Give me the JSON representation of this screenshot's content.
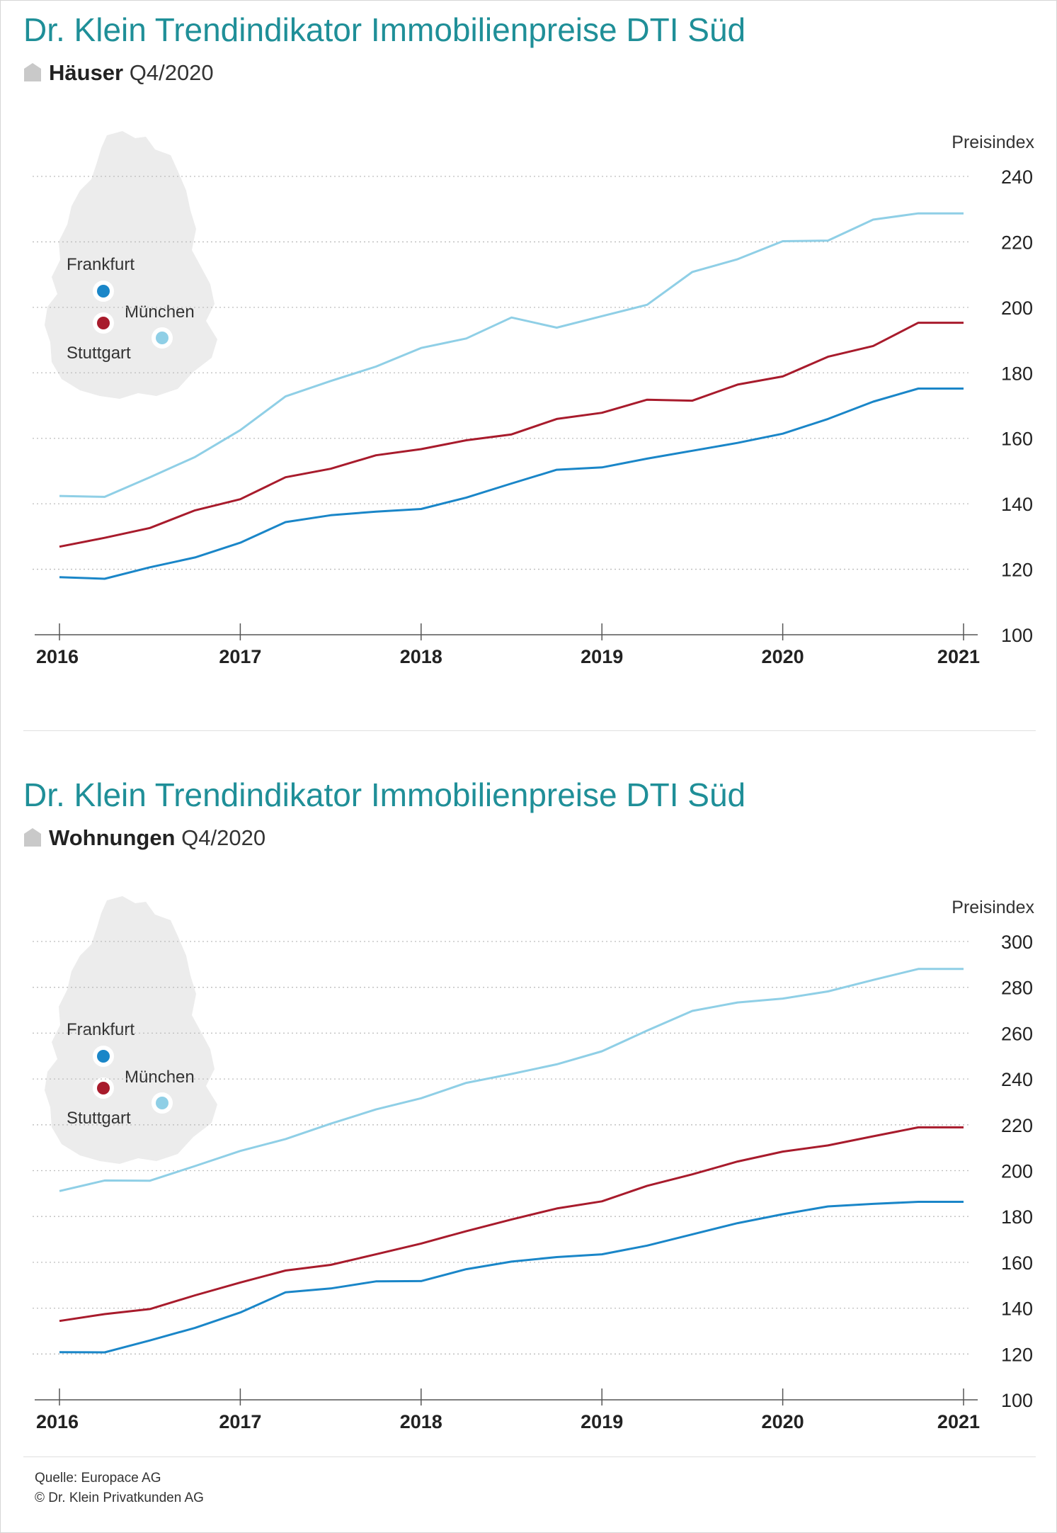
{
  "charts": [
    {
      "title": "Dr. Klein Trendindikator Immobilienpreise DTI Süd",
      "subtitle_bold": "Häuser",
      "subtitle_rest": "Q4/2020",
      "map_labels": [
        "Frankfurt",
        "München",
        "Stuttgart"
      ],
      "chart_data": {
        "type": "line",
        "ylabel": "Preisindex",
        "ylim": [
          100,
          240
        ],
        "yticks": [
          100,
          120,
          140,
          160,
          180,
          200,
          220,
          240
        ],
        "xlim": [
          2016,
          2021
        ],
        "xticks": [
          2016,
          2017,
          2018,
          2019,
          2020,
          2021
        ],
        "grid": "horizontal-dotted",
        "x": [
          2016.0,
          2016.25,
          2016.5,
          2016.75,
          2017.0,
          2017.25,
          2017.5,
          2017.75,
          2018.0,
          2018.25,
          2018.5,
          2018.75,
          2019.0,
          2019.25,
          2019.5,
          2019.75,
          2020.0,
          2020.25,
          2020.5,
          2020.75,
          2021.0
        ],
        "series": [
          {
            "name": "Frankfurt",
            "color": "#1a86c8",
            "values": [
              117.6,
              117.1,
              120.6,
              123.6,
              128.1,
              134.4,
              136.5,
              137.6,
              138.4,
              141.9,
              146.2,
              150.4,
              151.1,
              153.8,
              156.2,
              158.6,
              161.4,
              165.9,
              171.2,
              175.2,
              175.2
            ]
          },
          {
            "name": "München",
            "color": "#a81b2c",
            "values": [
              126.9,
              129.6,
              132.6,
              138.0,
              141.4,
              148.1,
              150.7,
              154.8,
              156.7,
              159.4,
              161.2,
              165.9,
              167.8,
              171.8,
              171.5,
              176.4,
              178.9,
              184.9,
              188.2,
              195.3,
              195.3
            ]
          },
          {
            "name": "Stuttgart",
            "color": "#8fcfe6",
            "values": [
              142.4,
              142.1,
              148.1,
              154.3,
              162.5,
              172.8,
              177.5,
              181.9,
              187.6,
              190.5,
              196.9,
              193.8,
              197.3,
              200.8,
              210.8,
              214.7,
              220.2,
              220.4,
              226.8,
              228.7,
              228.7
            ]
          }
        ]
      }
    },
    {
      "title": "Dr. Klein Trendindikator Immobilienpreise DTI Süd",
      "subtitle_bold": "Wohnungen",
      "subtitle_rest": "Q4/2020",
      "map_labels": [
        "Frankfurt",
        "München",
        "Stuttgart"
      ],
      "chart_data": {
        "type": "line",
        "ylabel": "Preisindex",
        "ylim": [
          100,
          300
        ],
        "yticks": [
          100,
          120,
          140,
          160,
          180,
          200,
          220,
          240,
          260,
          280,
          300
        ],
        "xlim": [
          2016,
          2021
        ],
        "xticks": [
          2016,
          2017,
          2018,
          2019,
          2020,
          2021
        ],
        "grid": "horizontal-dotted",
        "x": [
          2016.0,
          2016.25,
          2016.5,
          2016.75,
          2017.0,
          2017.25,
          2017.5,
          2017.75,
          2018.0,
          2018.25,
          2018.5,
          2018.75,
          2019.0,
          2019.25,
          2019.5,
          2019.75,
          2020.0,
          2020.25,
          2020.5,
          2020.75,
          2021.0
        ],
        "series": [
          {
            "name": "Frankfurt",
            "color": "#1a86c8",
            "values": [
              120.8,
              120.7,
              125.9,
              131.4,
              138.1,
              146.9,
              148.6,
              151.7,
              151.8,
              157.0,
              160.3,
              162.3,
              163.5,
              167.3,
              172.2,
              177.1,
              181.0,
              184.4,
              185.5,
              186.4,
              186.4
            ]
          },
          {
            "name": "München",
            "color": "#a81b2c",
            "values": [
              134.4,
              137.4,
              139.6,
              145.6,
              151.2,
              156.4,
              158.9,
              163.5,
              168.2,
              173.6,
              178.7,
              183.5,
              186.6,
              193.4,
              198.4,
              204.0,
              208.3,
              211.0,
              215.0,
              218.9,
              218.9
            ]
          },
          {
            "name": "Stuttgart",
            "color": "#8fcfe6",
            "values": [
              191.1,
              195.7,
              195.6,
              202.0,
              208.6,
              213.8,
              220.5,
              226.7,
              231.6,
              238.3,
              242.2,
              246.4,
              252.1,
              261.1,
              269.7,
              273.4,
              275.1,
              278.2,
              283.2,
              288.0,
              288.0
            ]
          }
        ]
      }
    }
  ],
  "footer": {
    "source": "Quelle: Europace AG",
    "copyright": "© Dr. Klein Privatkunden AG"
  }
}
